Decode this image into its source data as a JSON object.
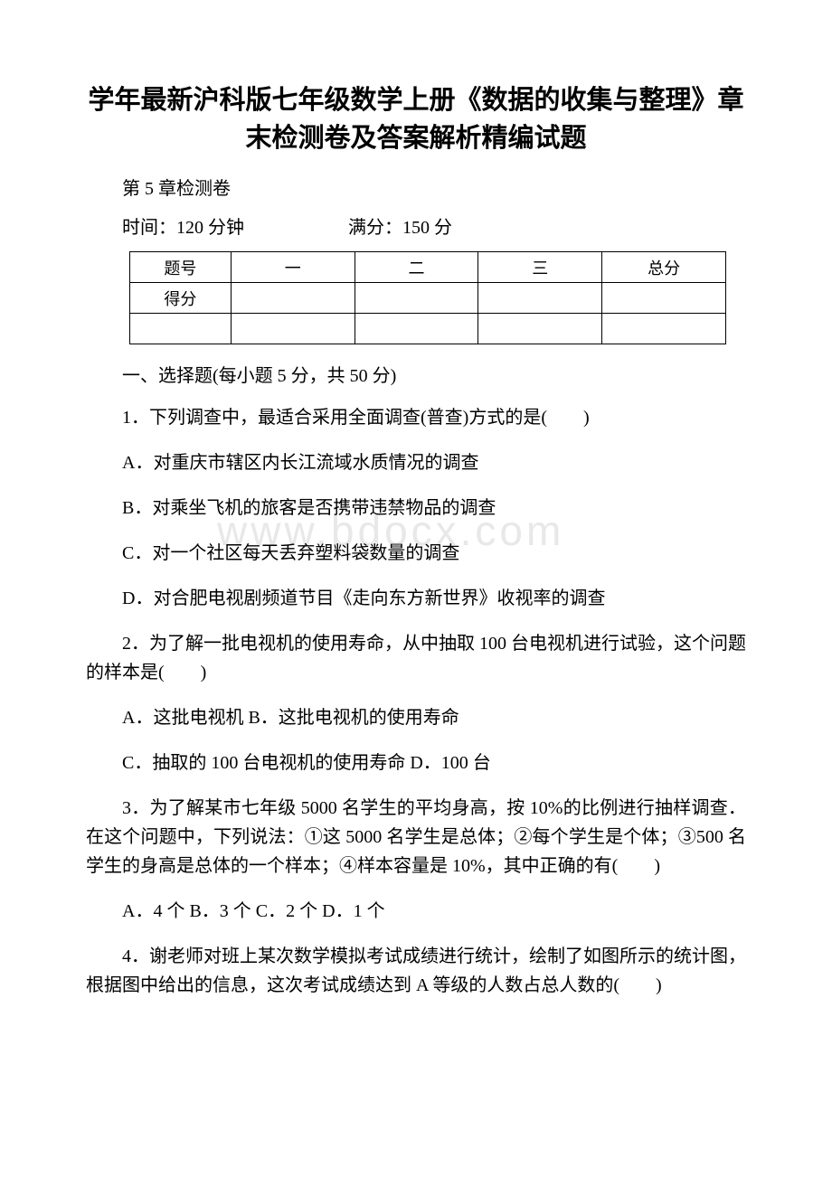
{
  "title": "学年最新沪科版七年级数学上册《数据的收集与整理》章末检测卷及答案解析精编试题",
  "subtitle": "第 5 章检测卷",
  "examInfo": {
    "timeLabel": "时间：",
    "timeValue": "120 分钟",
    "scoreLabel": "满分：",
    "scoreValue": "150 分"
  },
  "scoreTable": {
    "row1": [
      "题号",
      "一",
      "二",
      "三",
      "总分"
    ],
    "row2": [
      "得分",
      "",
      "",
      "",
      ""
    ]
  },
  "section1Heading": "一、选择题(每小题 5 分，共 50 分)",
  "q1": {
    "stem": "1．下列调查中，最适合采用全面调查(普查)方式的是(　　)",
    "a": "A．对重庆市辖区内长江流域水质情况的调查",
    "b": "B．对乘坐飞机的旅客是否携带违禁物品的调查",
    "c": "C．对一个社区每天丢弃塑料袋数量的调查",
    "d": "D．对合肥电视剧频道节目《走向东方新世界》收视率的调查"
  },
  "q2": {
    "stem": "2．为了解一批电视机的使用寿命，从中抽取 100 台电视机进行试验，这个问题的样本是(　　)",
    "ab": "A．这批电视机 B．这批电视机的使用寿命",
    "cd": "C．抽取的 100 台电视机的使用寿命 D．100 台"
  },
  "q3": {
    "stem": "3．为了解某市七年级 5000 名学生的平均身高，按 10%的比例进行抽样调查．在这个问题中，下列说法：①这 5000 名学生是总体；②每个学生是个体；③500 名学生的身高是总体的一个样本；④样本容量是 10%，其中正确的有(　　)",
    "options": "A．4 个 B．3 个 C．2 个 D．1 个"
  },
  "q4": {
    "stem": "4．谢老师对班上某次数学模拟考试成绩进行统计，绘制了如图所示的统计图，根据图中给出的信息，这次考试成绩达到 A 等级的人数占总人数的(　　)"
  },
  "watermark": "www.bdocx.com"
}
